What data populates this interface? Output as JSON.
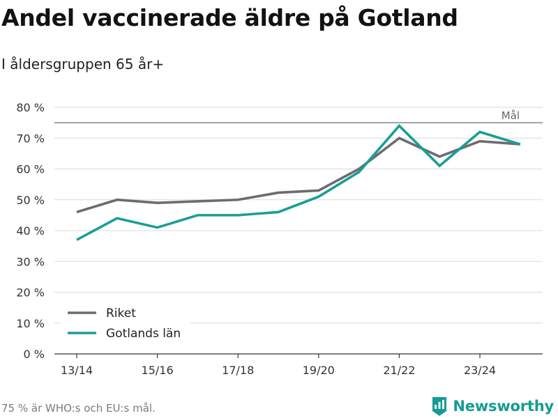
{
  "title": "Andel vaccinerade äldre på Gotland",
  "subtitle": "I åldersgruppen 65 år+",
  "footer": {
    "source": "75 % är WHO:s och EU:s mål.",
    "brand": "Newsworthy"
  },
  "colors": {
    "riket": "#6d6b70",
    "gotland": "#1a9e96",
    "grid": "#d9d9d9",
    "goal_line": "#6d6b70",
    "brand": "#159c94"
  },
  "chart_data": {
    "type": "line",
    "title": "Andel vaccinerade äldre på Gotland",
    "subtitle": "I åldersgruppen 65 år+",
    "x": [
      "13/14",
      "14/15",
      "15/16",
      "16/17",
      "17/18",
      "18/19",
      "19/20",
      "20/21",
      "21/22",
      "22/23",
      "23/24",
      "24/25"
    ],
    "x_tick_labels": [
      "13/14",
      "15/16",
      "17/18",
      "19/20",
      "21/22",
      "23/24"
    ],
    "ylim": [
      0,
      80
    ],
    "y_ticks": [
      0,
      10,
      20,
      30,
      40,
      50,
      60,
      70,
      80
    ],
    "y_tick_labels": [
      "0 %",
      "10 %",
      "20 %",
      "30 %",
      "40 %",
      "50 %",
      "60 %",
      "70 %",
      "80 %"
    ],
    "grid": true,
    "legend_position": "bottom-left",
    "series": [
      {
        "name": "Riket",
        "values": [
          46,
          50,
          49,
          49.5,
          50,
          52.3,
          53,
          60,
          70,
          64,
          69,
          68
        ]
      },
      {
        "name": "Gotlands län",
        "values": [
          37,
          44,
          41,
          45,
          45,
          46,
          51,
          59,
          74,
          61,
          72,
          68
        ]
      }
    ],
    "reference_line": {
      "value": 75,
      "label": "Mål"
    }
  }
}
